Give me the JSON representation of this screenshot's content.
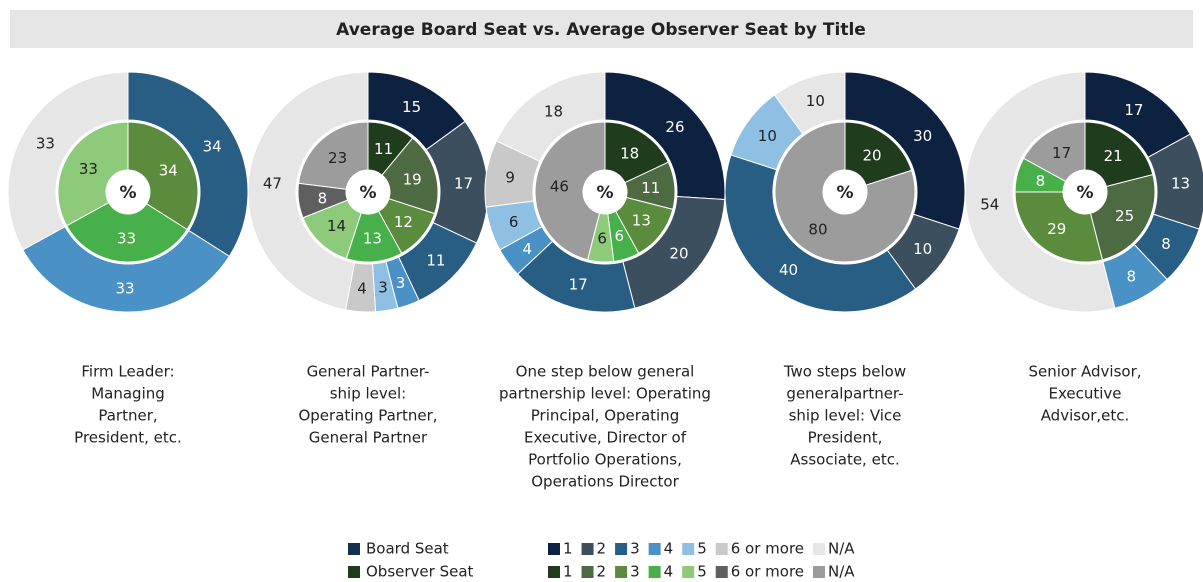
{
  "title": "Average Board Seat vs. Average Observer Seat by Title",
  "center_label": "%",
  "legend": [
    {
      "name": "Board Seat",
      "color": "#13304f",
      "categories": [
        "1",
        "2",
        "3",
        "4",
        "5",
        "6 or more",
        "N/A"
      ],
      "colors": [
        "#0d2240",
        "#3b4f5e",
        "#285d84",
        "#4a91c6",
        "#8fbfe2",
        "#c9c9c9",
        "#e6e6e6"
      ]
    },
    {
      "name": "Observer Seat",
      "color": "#1f3d1c",
      "categories": [
        "1",
        "2",
        "3",
        "4",
        "5",
        "6 or more",
        "N/A"
      ],
      "colors": [
        "#1f3d1c",
        "#4e6a43",
        "#5b8b3d",
        "#48b04a",
        "#8dcb7b",
        "#5f5f5f",
        "#9c9c9c"
      ]
    }
  ],
  "chart_data": [
    {
      "type": "donut",
      "caption": [
        "Firm Leader:",
        "Managing",
        "Partner,",
        "President, etc."
      ],
      "series": [
        {
          "values": [
            null,
            null,
            34,
            33,
            null,
            null,
            33
          ]
        },
        {
          "values": [
            null,
            null,
            34,
            33,
            33,
            null,
            null
          ]
        }
      ]
    },
    {
      "type": "donut",
      "caption": [
        "General Partner-",
        "ship level:",
        "Operating Partner,",
        "General Partner"
      ],
      "series": [
        {
          "values": [
            15,
            17,
            11,
            3,
            3,
            4,
            47
          ]
        },
        {
          "values": [
            11,
            19,
            12,
            13,
            14,
            8,
            23
          ]
        }
      ]
    },
    {
      "type": "donut",
      "caption": [
        "One step below general",
        "partnership level: Operating",
        "Principal, Operating",
        "Executive, Director of",
        "Portfolio Operations,",
        "Operations Director"
      ],
      "series": [
        {
          "values": [
            26,
            20,
            17,
            4,
            6,
            9,
            18
          ]
        },
        {
          "values": [
            18,
            11,
            13,
            6,
            6,
            null,
            46
          ]
        }
      ]
    },
    {
      "type": "donut",
      "caption": [
        "Two steps below",
        "generalpartner-",
        "ship level: Vice",
        "President,",
        "Associate, etc."
      ],
      "series": [
        {
          "values": [
            30,
            10,
            40,
            null,
            10,
            null,
            10
          ]
        },
        {
          "values": [
            20,
            null,
            null,
            null,
            null,
            null,
            80
          ]
        }
      ]
    },
    {
      "type": "donut",
      "caption": [
        "Senior Advisor,",
        "Executive",
        "Advisor,etc."
      ],
      "series": [
        {
          "values": [
            17,
            13,
            8,
            8,
            null,
            null,
            54
          ]
        },
        {
          "values": [
            21,
            25,
            29,
            8,
            null,
            null,
            17
          ]
        }
      ]
    }
  ]
}
